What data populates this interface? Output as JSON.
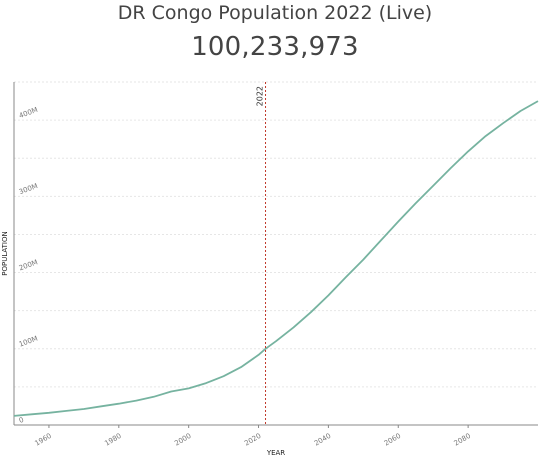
{
  "header": {
    "title": "DR Congo Population 2022 (Live)",
    "live_count": "100,233,973"
  },
  "chart_data": {
    "type": "line",
    "xlabel": "YEAR",
    "ylabel": "POPULATION",
    "xlim": [
      1950,
      2100
    ],
    "ylim": [
      0,
      450000000
    ],
    "x_ticks": [
      1960,
      1980,
      2000,
      2020,
      2040,
      2060,
      2080
    ],
    "x_tick_labels": [
      "1960",
      "1980",
      "2000",
      "2020",
      "2040",
      "2060",
      "2080"
    ],
    "y_ticks": [
      0,
      100000000,
      200000000,
      300000000,
      400000000
    ],
    "y_tick_labels": [
      "0",
      "100M",
      "200M",
      "300M",
      "400M"
    ],
    "grid": true,
    "marker": {
      "x": 2022,
      "label": "2022"
    },
    "colors": {
      "line": "#76b3a0",
      "marker": "#c0392b"
    },
    "series": [
      {
        "x": [
          1950,
          1955,
          1960,
          1965,
          1970,
          1975,
          1980,
          1985,
          1990,
          1995,
          2000,
          2005,
          2010,
          2015,
          2020,
          2022,
          2025,
          2030,
          2035,
          2040,
          2045,
          2050,
          2055,
          2060,
          2065,
          2070,
          2075,
          2080,
          2085,
          2090,
          2095,
          2100
        ],
        "y": [
          12000000,
          14000000,
          16000000,
          18500000,
          21000000,
          24500000,
          28000000,
          32000000,
          37000000,
          44000000,
          48000000,
          55000000,
          64000000,
          76000000,
          92000000,
          100000000,
          110000000,
          128000000,
          148000000,
          170000000,
          194000000,
          217000000,
          242000000,
          267000000,
          291000000,
          314000000,
          337000000,
          359000000,
          379000000,
          396000000,
          412000000,
          425000000
        ]
      }
    ]
  }
}
